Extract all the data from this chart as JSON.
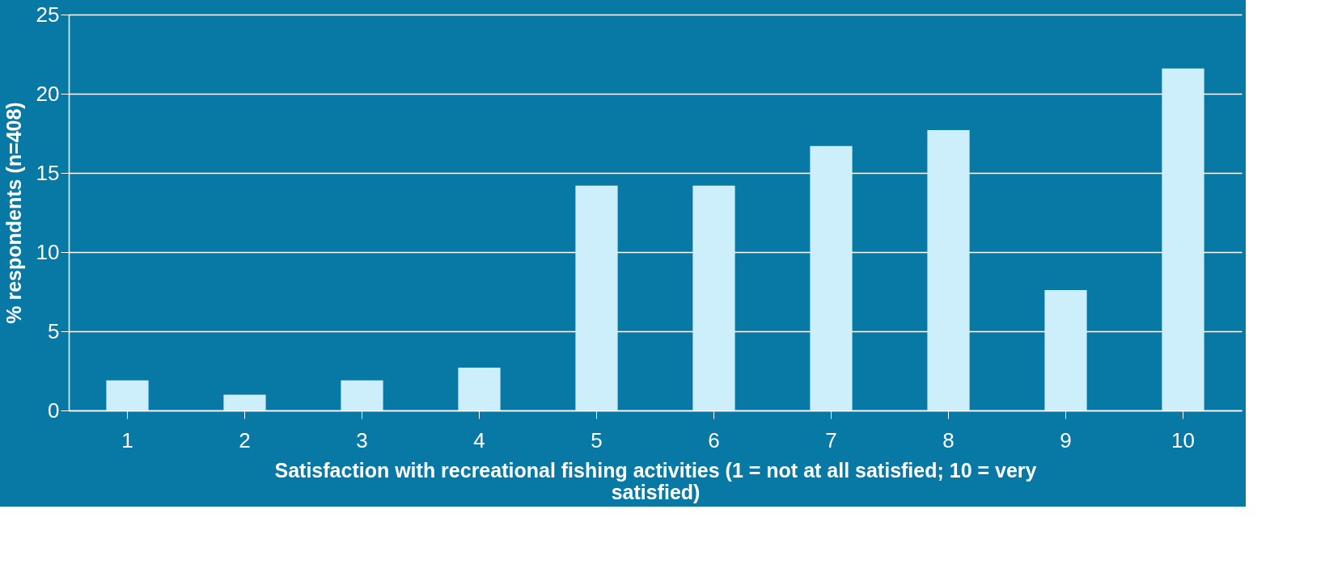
{
  "chart_data": {
    "type": "bar",
    "xlabel": "Satisfaction with recreational fishing activities (1 = not at all satisfied; 10 = very satisfied)",
    "ylabel": "% respondents (n=408)",
    "categories": [
      "1",
      "2",
      "3",
      "4",
      "5",
      "6",
      "7",
      "8",
      "9",
      "10"
    ],
    "values": [
      1.9,
      1.0,
      1.9,
      2.7,
      14.2,
      14.2,
      16.7,
      17.7,
      7.6,
      21.6
    ],
    "color": "#cdeefb",
    "ylim": [
      0,
      25
    ],
    "yticks": [
      0,
      5,
      10,
      15,
      20,
      25
    ],
    "grid": "y"
  }
}
